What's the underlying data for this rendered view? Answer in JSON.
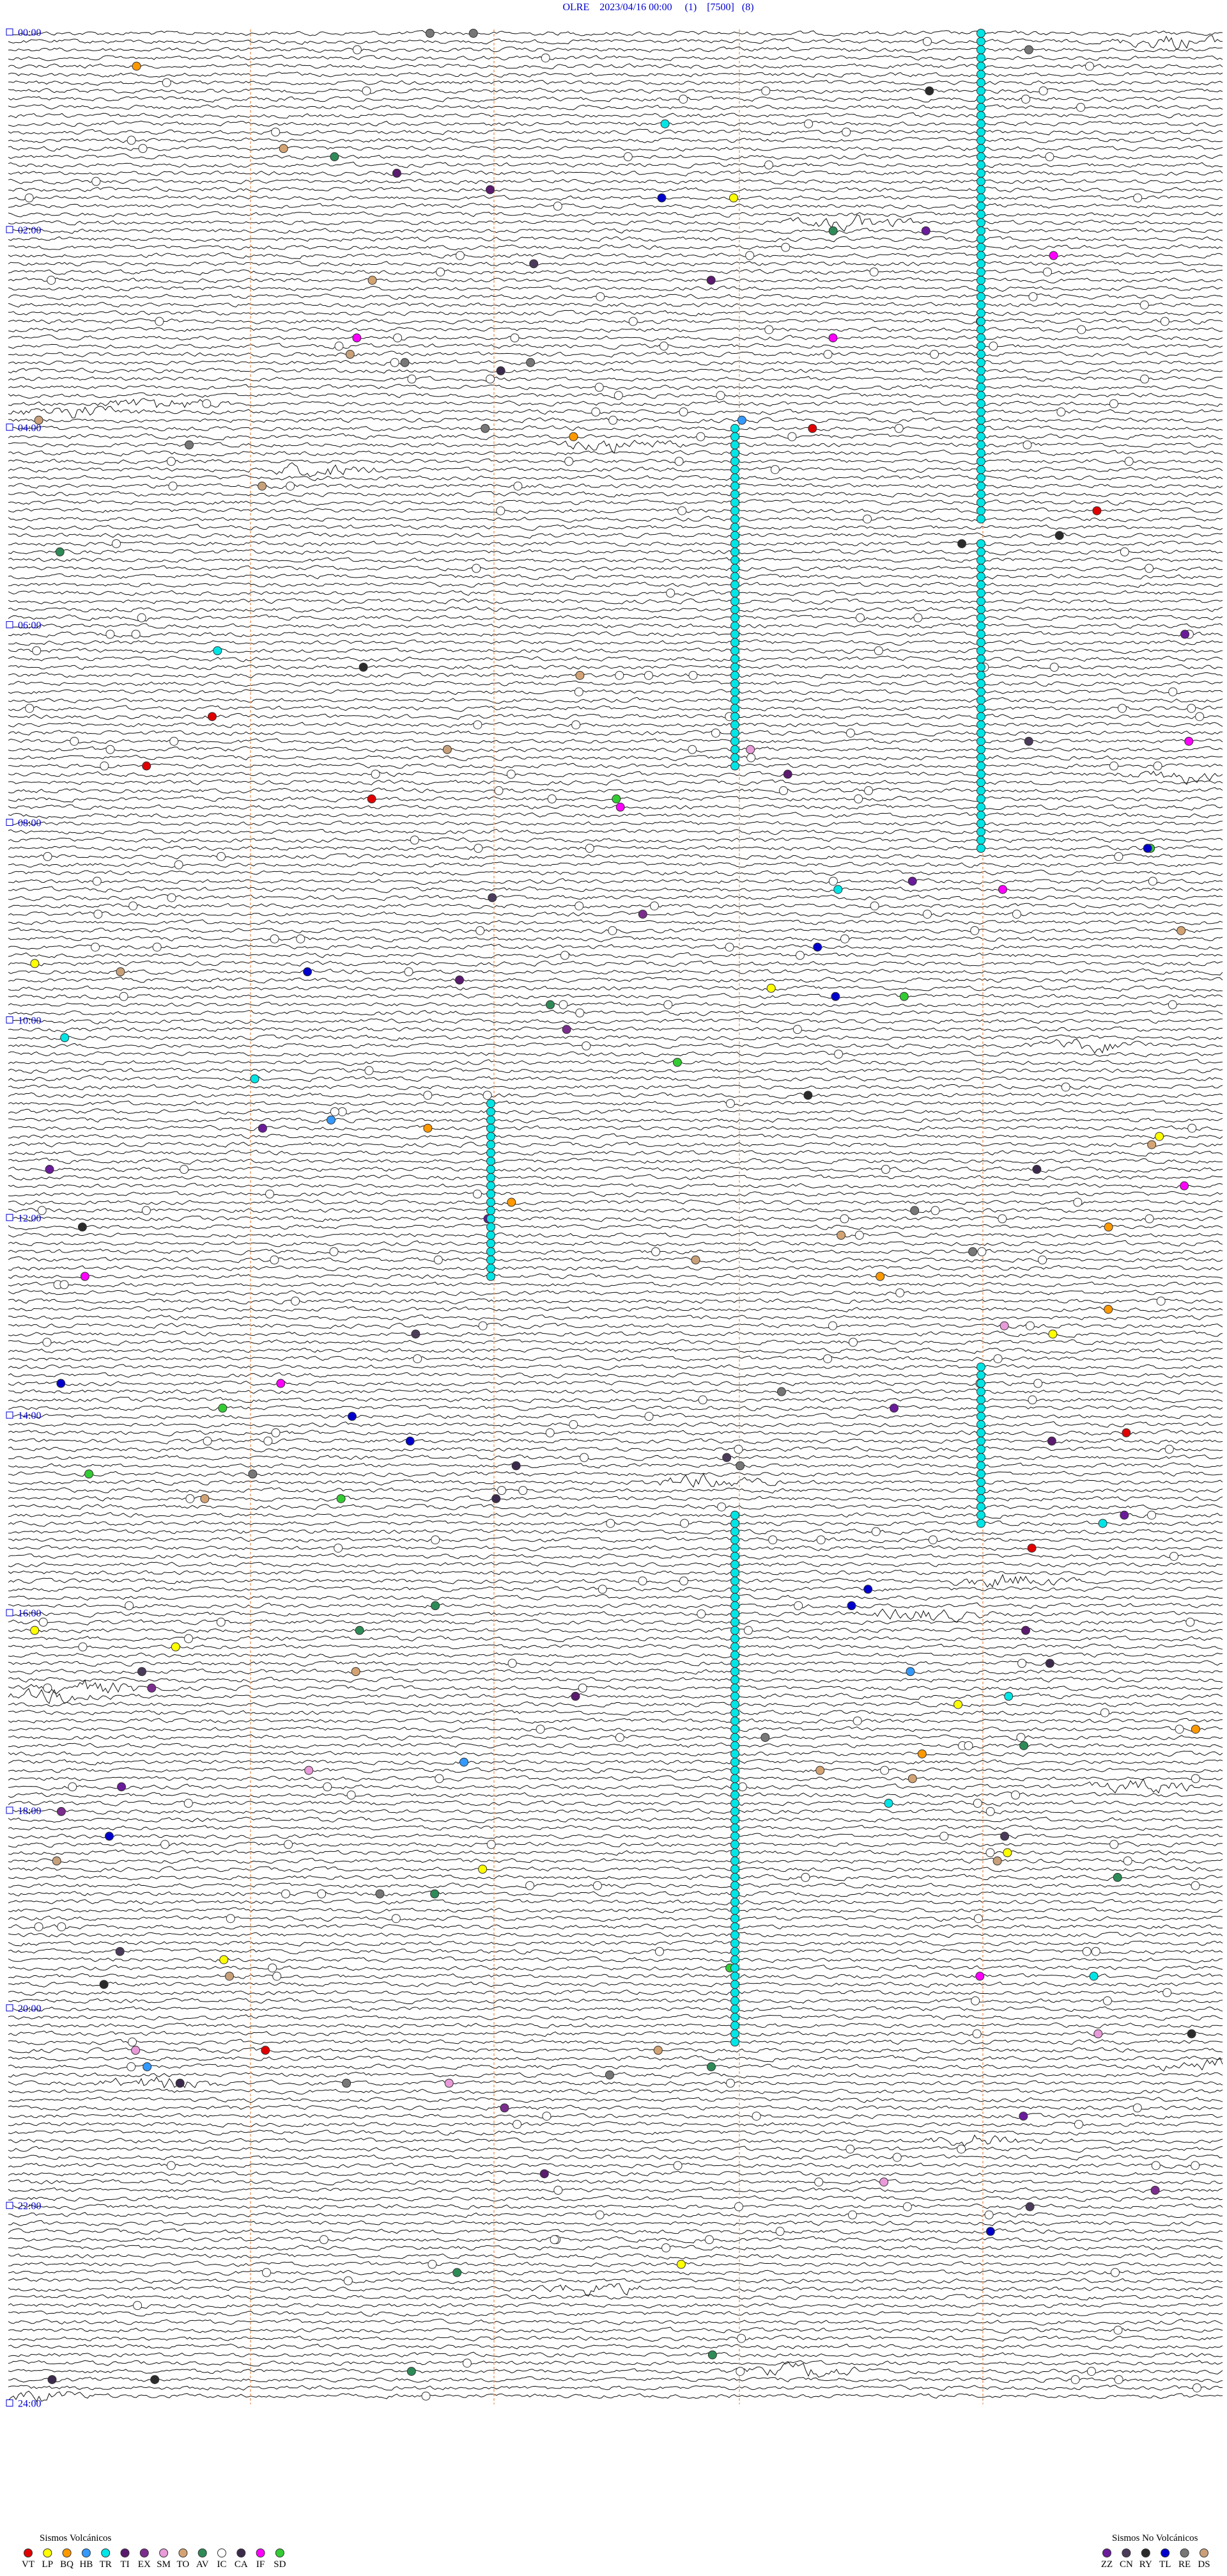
{
  "header": {
    "title": "OLRE    2023/04/16 00:00     (1)    [7500]   (8)"
  },
  "time_labels": [
    "00:00",
    "02:00",
    "04:00",
    "06:00",
    "08:00",
    "10:00",
    "12:00",
    "14:00",
    "16:00",
    "18:00",
    "20:00",
    "22:00",
    "24:00"
  ],
  "legend": {
    "volcanic": {
      "title": "Sismos Volcánicos",
      "items": [
        {
          "code": "VT",
          "color": "#e00000"
        },
        {
          "code": "LP",
          "color": "#ffff00"
        },
        {
          "code": "BQ",
          "color": "#ff9900"
        },
        {
          "code": "HB",
          "color": "#3399ff"
        },
        {
          "code": "TR",
          "color": "#00e5e5"
        },
        {
          "code": "TI",
          "color": "#5a1a6e"
        },
        {
          "code": "EX",
          "color": "#7b2d8e"
        },
        {
          "code": "SM",
          "color": "#e89ad9"
        },
        {
          "code": "TO",
          "color": "#d4a373"
        },
        {
          "code": "AV",
          "color": "#2e8b57"
        },
        {
          "code": "IC",
          "color": "#ffffff"
        },
        {
          "code": "CA",
          "color": "#3c2a4d"
        },
        {
          "code": "IF",
          "color": "#ff00ff"
        },
        {
          "code": "SD",
          "color": "#33cc33"
        }
      ]
    },
    "nonvolcanic": {
      "title": "Sismos No Volcánicos",
      "items": [
        {
          "code": "ZZ",
          "color": "#6a1b9a"
        },
        {
          "code": "CN",
          "color": "#4b3b5a"
        },
        {
          "code": "RY",
          "color": "#2b2b2b"
        },
        {
          "code": "TL",
          "color": "#0000cc"
        },
        {
          "code": "RE",
          "color": "#777777"
        },
        {
          "code": "DS",
          "color": "#c8a07a"
        }
      ]
    }
  }
}
